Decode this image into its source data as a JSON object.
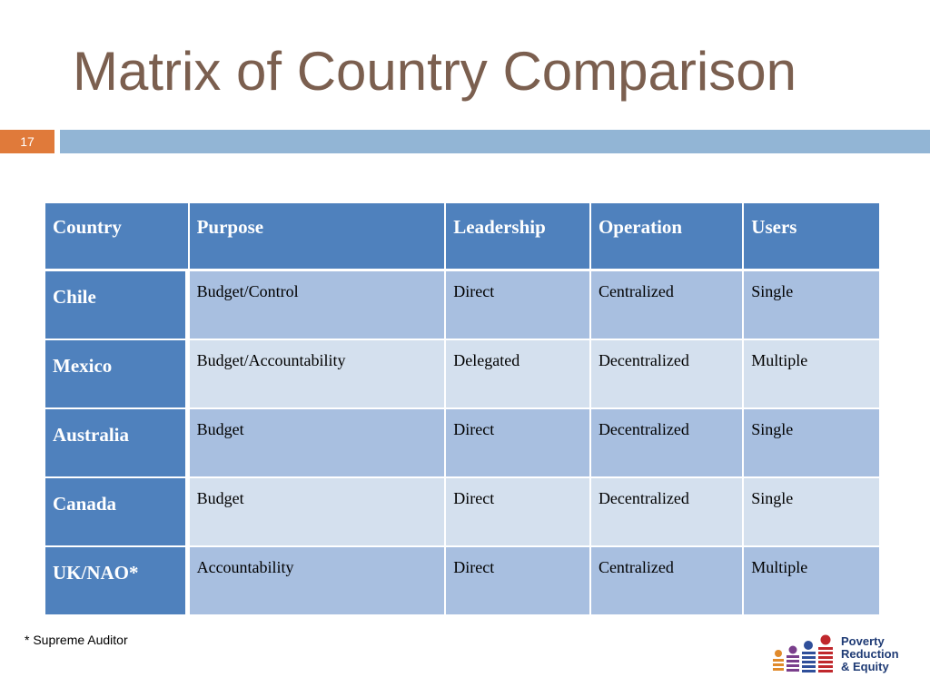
{
  "slide": {
    "title": "Matrix of Country Comparison",
    "number": "17",
    "footnote": "* Supreme Auditor"
  },
  "table": {
    "headers": [
      "Country",
      "Purpose",
      "Leadership",
      "Operation",
      "Users"
    ],
    "rows": [
      {
        "country": "Chile",
        "purpose": "Budget/Control",
        "leadership": "Direct",
        "operation": "Centralized",
        "users": "Single"
      },
      {
        "country": "Mexico",
        "purpose": "Budget/Accountability",
        "leadership": "Delegated",
        "operation": "Decentralized",
        "users": "Multiple"
      },
      {
        "country": "Australia",
        "purpose": "Budget",
        "leadership": "Direct",
        "operation": "Decentralized",
        "users": "Single"
      },
      {
        "country": "Canada",
        "purpose": "Budget",
        "leadership": "Direct",
        "operation": "Decentralized",
        "users": "Single"
      },
      {
        "country": "UK/NAO*",
        "purpose": "Accountability",
        "leadership": "Direct",
        "operation": "Centralized",
        "users": "Multiple"
      }
    ]
  },
  "logo": {
    "line1": "Poverty",
    "line2": "Reduction",
    "line3": "& Equity"
  },
  "colors": {
    "title": "#7b5f4f",
    "accent_orange": "#e07a3a",
    "bar_blue": "#92b5d5",
    "header_blue": "#4f81bd",
    "row_dark": "#a8bfe0",
    "row_light": "#d4e0ee"
  }
}
